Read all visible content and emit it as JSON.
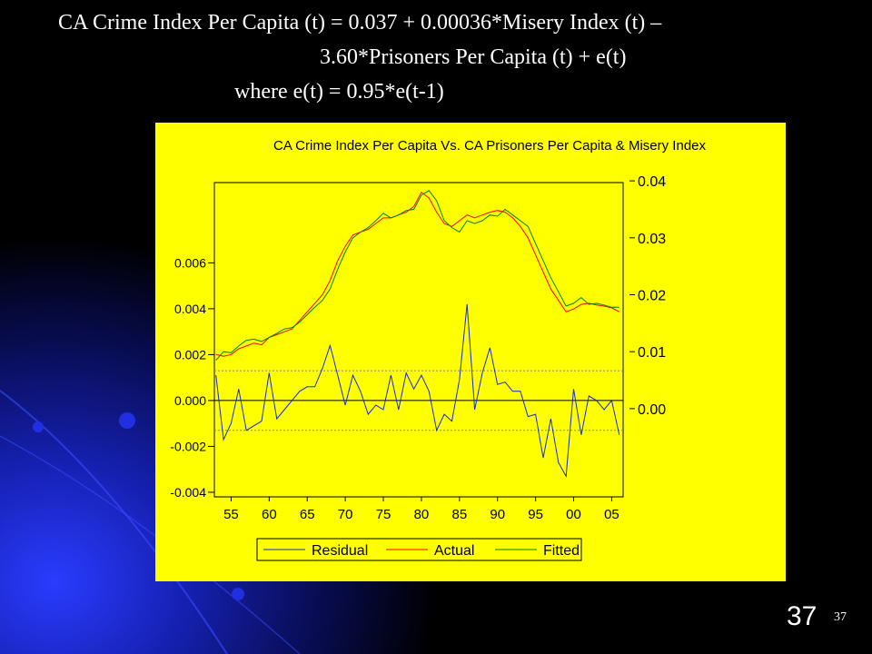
{
  "title_lines": [
    "CA Crime Index Per Capita (t) = 0.037 + 0.00036*Misery Index (t) –",
    "3.60*Prisoners Per Capita (t) + e(t)",
    "where e(t) = 0.95*e(t-1)"
  ],
  "slide_number": "37",
  "page_number": "37",
  "chart_data": {
    "type": "line",
    "title": "CA Crime Index Per Capita Vs. CA Prisoners Per Capita & Misery Index",
    "x": [
      1953,
      1954,
      1955,
      1956,
      1957,
      1958,
      1959,
      1960,
      1961,
      1962,
      1963,
      1964,
      1965,
      1966,
      1967,
      1968,
      1969,
      1970,
      1971,
      1972,
      1973,
      1974,
      1975,
      1976,
      1977,
      1978,
      1979,
      1980,
      1981,
      1982,
      1983,
      1984,
      1985,
      1986,
      1987,
      1988,
      1989,
      1990,
      1991,
      1992,
      1993,
      1994,
      1995,
      1996,
      1997,
      1998,
      1999,
      2000,
      2001,
      2002,
      2003,
      2004,
      2005,
      2006
    ],
    "xlim": [
      1952.8,
      2006.5
    ],
    "xticks": [
      {
        "value": 1955,
        "label": "55"
      },
      {
        "value": 1960,
        "label": "60"
      },
      {
        "value": 1965,
        "label": "65"
      },
      {
        "value": 1970,
        "label": "70"
      },
      {
        "value": 1975,
        "label": "75"
      },
      {
        "value": 1980,
        "label": "80"
      },
      {
        "value": 1985,
        "label": "85"
      },
      {
        "value": 1990,
        "label": "90"
      },
      {
        "value": 1995,
        "label": "95"
      },
      {
        "value": 2000,
        "label": "00"
      },
      {
        "value": 2005,
        "label": "05"
      }
    ],
    "ylim": [
      -0.0042,
      0.0095
    ],
    "yticks": [
      -0.004,
      -0.002,
      {
        "value": 0,
        "label": "0.000"
      },
      0.002,
      0.004,
      0.006
    ],
    "y2lim": [
      -0.0155,
      0.0397
    ],
    "y2ticks": [
      {
        "value": 0,
        "label": "0.00"
      },
      0.01,
      0.02,
      0.03,
      0.04
    ],
    "residual_band": [
      -0.0013,
      0.0013
    ],
    "series": [
      {
        "name": "Residual",
        "color": "#1428d8",
        "values": [
          0.0011,
          -0.0017,
          -0.001,
          0.0005,
          -0.0013,
          -0.0011,
          -0.0009,
          0.0012,
          -0.0008,
          -0.0004,
          0.0,
          0.0004,
          0.0006,
          0.0006,
          0.0014,
          0.0024,
          0.0011,
          -0.0002,
          0.0011,
          0.0004,
          -0.0006,
          -0.0002,
          -0.0004,
          0.0011,
          -0.0004,
          0.0012,
          0.0005,
          0.0011,
          0.0004,
          -0.0013,
          -0.0006,
          -0.0009,
          0.0009,
          0.0042,
          -0.0004,
          0.0012,
          0.0023,
          0.0007,
          0.0008,
          0.0004,
          0.0004,
          -0.0007,
          -0.0006,
          -0.0025,
          -0.0008,
          -0.0027,
          -0.0033,
          0.0005,
          -0.0015,
          0.0002,
          0.0,
          -0.0004,
          0.0,
          -0.0015
        ]
      },
      {
        "name": "Actual",
        "color": "#ff0000",
        "axis": "y2",
        "values": [
          0.0095,
          0.0092,
          0.0095,
          0.0105,
          0.011,
          0.0115,
          0.0112,
          0.0125,
          0.013,
          0.0135,
          0.014,
          0.0155,
          0.017,
          0.0185,
          0.02,
          0.0225,
          0.026,
          0.0285,
          0.0305,
          0.031,
          0.0315,
          0.0325,
          0.0335,
          0.0335,
          0.034,
          0.0345,
          0.0355,
          0.038,
          0.037,
          0.0345,
          0.0325,
          0.032,
          0.033,
          0.034,
          0.0335,
          0.034,
          0.0345,
          0.0348,
          0.0345,
          0.0335,
          0.032,
          0.03,
          0.027,
          0.024,
          0.021,
          0.019,
          0.017,
          0.0175,
          0.0183,
          0.0185,
          0.0182,
          0.018,
          0.0177,
          0.017
        ]
      },
      {
        "name": "Fitted",
        "color": "#008000",
        "axis": "y2",
        "values": [
          0.0085,
          0.01,
          0.0098,
          0.011,
          0.012,
          0.0122,
          0.0118,
          0.0125,
          0.0132,
          0.014,
          0.0142,
          0.0152,
          0.0165,
          0.0178,
          0.019,
          0.021,
          0.0245,
          0.0275,
          0.03,
          0.031,
          0.0318,
          0.033,
          0.0343,
          0.0335,
          0.034,
          0.0348,
          0.035,
          0.0375,
          0.0383,
          0.0365,
          0.033,
          0.0318,
          0.031,
          0.033,
          0.0325,
          0.033,
          0.034,
          0.0338,
          0.035,
          0.034,
          0.033,
          0.032,
          0.029,
          0.026,
          0.023,
          0.0205,
          0.018,
          0.0185,
          0.0195,
          0.0183,
          0.0185,
          0.0182,
          0.0178,
          0.0178
        ]
      }
    ]
  }
}
